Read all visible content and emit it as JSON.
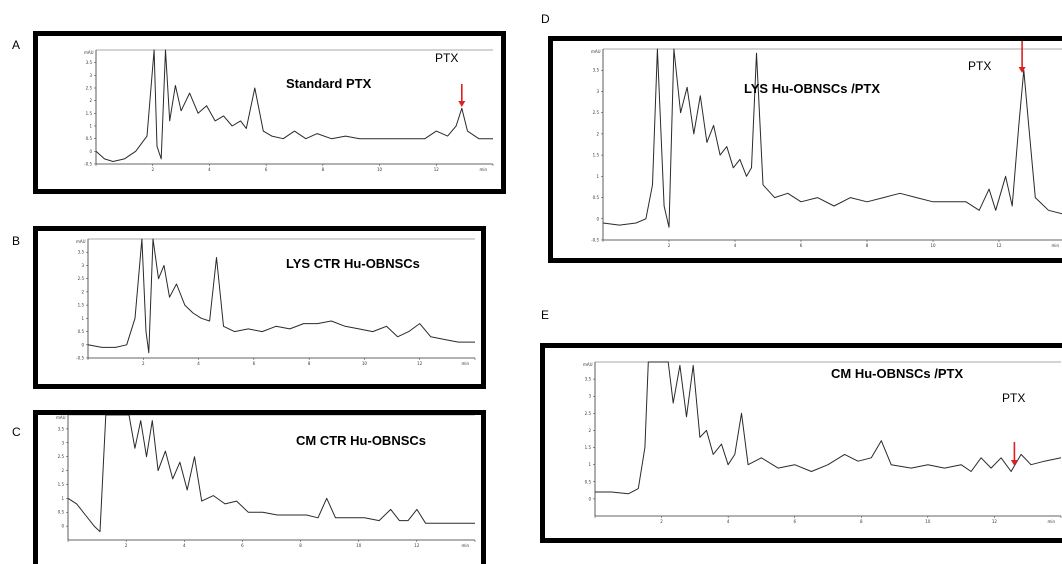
{
  "panels": {
    "A": {
      "letter": "A",
      "title": "Standard  PTX",
      "ptx": "PTX"
    },
    "B": {
      "letter": "B",
      "title": "LYS CTR Hu-OBNSCs"
    },
    "C": {
      "letter": "C",
      "title": "CM CTR Hu-OBNSCs"
    },
    "D": {
      "letter": "D",
      "title": "LYS Hu-OBNSCs  /PTX",
      "ptx": "PTX"
    },
    "E": {
      "letter": "E",
      "title": "CM Hu-OBNSCs  /PTX",
      "ptx": "PTX"
    }
  },
  "colors": {
    "trace": "#2a2a2a",
    "arrow": "#e02020",
    "frame": "#000000"
  },
  "chart_data": [
    {
      "type": "line",
      "panel": "A",
      "title": "Standard  PTX",
      "ylabel": "mAU",
      "xlabel": "min",
      "xlim": [
        0,
        14
      ],
      "ylim": [
        -0.5,
        4
      ],
      "yticks": [
        "-0.5",
        "0",
        "0.5",
        "1",
        "1.5",
        "2",
        "2.5",
        "3",
        "3.5"
      ],
      "annotation": {
        "label": "PTX",
        "x": 12.9
      },
      "points": [
        [
          0,
          0
        ],
        [
          0.3,
          -0.3
        ],
        [
          0.6,
          -0.4
        ],
        [
          1.0,
          -0.3
        ],
        [
          1.4,
          0
        ],
        [
          1.8,
          0.6
        ],
        [
          2.05,
          4.0
        ],
        [
          2.15,
          0.2
        ],
        [
          2.3,
          -0.3
        ],
        [
          2.45,
          4.0
        ],
        [
          2.6,
          1.2
        ],
        [
          2.8,
          2.6
        ],
        [
          3.0,
          1.6
        ],
        [
          3.3,
          2.3
        ],
        [
          3.6,
          1.5
        ],
        [
          3.9,
          1.8
        ],
        [
          4.2,
          1.2
        ],
        [
          4.5,
          1.4
        ],
        [
          4.8,
          1.0
        ],
        [
          5.1,
          1.2
        ],
        [
          5.3,
          0.9
        ],
        [
          5.6,
          2.5
        ],
        [
          5.9,
          0.8
        ],
        [
          6.2,
          0.6
        ],
        [
          6.6,
          0.5
        ],
        [
          7.0,
          0.8
        ],
        [
          7.4,
          0.5
        ],
        [
          7.8,
          0.7
        ],
        [
          8.3,
          0.5
        ],
        [
          8.8,
          0.6
        ],
        [
          9.3,
          0.5
        ],
        [
          9.8,
          0.5
        ],
        [
          10.4,
          0.5
        ],
        [
          11.0,
          0.5
        ],
        [
          11.6,
          0.5
        ],
        [
          12.0,
          0.8
        ],
        [
          12.4,
          0.6
        ],
        [
          12.7,
          1.0
        ],
        [
          12.9,
          1.7
        ],
        [
          13.1,
          0.8
        ],
        [
          13.5,
          0.5
        ],
        [
          14,
          0.5
        ]
      ]
    },
    {
      "type": "line",
      "panel": "B",
      "title": "LYS CTR Hu-OBNSCs",
      "ylabel": "mAU",
      "xlabel": "min",
      "xlim": [
        0,
        14
      ],
      "ylim": [
        -0.5,
        4
      ],
      "yticks": [
        "-0.5",
        "0",
        "0.5",
        "1",
        "1.5",
        "2",
        "2.5",
        "3",
        "3.5"
      ],
      "points": [
        [
          0,
          0
        ],
        [
          0.5,
          -0.1
        ],
        [
          1.0,
          -0.1
        ],
        [
          1.4,
          0
        ],
        [
          1.7,
          1.0
        ],
        [
          1.95,
          4.0
        ],
        [
          2.1,
          0.5
        ],
        [
          2.2,
          -0.3
        ],
        [
          2.35,
          4.0
        ],
        [
          2.55,
          2.5
        ],
        [
          2.75,
          3.0
        ],
        [
          2.95,
          1.8
        ],
        [
          3.2,
          2.3
        ],
        [
          3.5,
          1.5
        ],
        [
          3.8,
          1.2
        ],
        [
          4.1,
          1.0
        ],
        [
          4.4,
          0.9
        ],
        [
          4.65,
          3.3
        ],
        [
          4.9,
          0.7
        ],
        [
          5.3,
          0.5
        ],
        [
          5.8,
          0.6
        ],
        [
          6.3,
          0.5
        ],
        [
          6.8,
          0.7
        ],
        [
          7.3,
          0.6
        ],
        [
          7.8,
          0.8
        ],
        [
          8.3,
          0.8
        ],
        [
          8.8,
          0.9
        ],
        [
          9.3,
          0.7
        ],
        [
          9.8,
          0.6
        ],
        [
          10.3,
          0.5
        ],
        [
          10.8,
          0.7
        ],
        [
          11.2,
          0.3
        ],
        [
          11.6,
          0.5
        ],
        [
          12.0,
          0.8
        ],
        [
          12.4,
          0.3
        ],
        [
          12.9,
          0.2
        ],
        [
          13.4,
          0.1
        ],
        [
          14,
          0.1
        ]
      ]
    },
    {
      "type": "line",
      "panel": "C",
      "title": "CM CTR Hu-OBNSCs",
      "ylabel": "mAU",
      "xlabel": "min",
      "xlim": [
        0,
        14
      ],
      "ylim": [
        -0.5,
        4
      ],
      "yticks": [
        "0",
        "0.5",
        "1",
        "1.5",
        "2",
        "2.5",
        "3",
        "3.5"
      ],
      "points": [
        [
          0,
          1.0
        ],
        [
          0.3,
          0.8
        ],
        [
          0.6,
          0.4
        ],
        [
          0.9,
          0
        ],
        [
          1.1,
          -0.2
        ],
        [
          1.3,
          4.0
        ],
        [
          2.1,
          4.0
        ],
        [
          2.3,
          2.8
        ],
        [
          2.5,
          3.8
        ],
        [
          2.7,
          2.5
        ],
        [
          2.9,
          3.8
        ],
        [
          3.1,
          2.0
        ],
        [
          3.35,
          2.7
        ],
        [
          3.6,
          1.7
        ],
        [
          3.85,
          2.3
        ],
        [
          4.1,
          1.3
        ],
        [
          4.35,
          2.5
        ],
        [
          4.6,
          0.9
        ],
        [
          5.0,
          1.1
        ],
        [
          5.4,
          0.8
        ],
        [
          5.8,
          0.9
        ],
        [
          6.2,
          0.5
        ],
        [
          6.7,
          0.5
        ],
        [
          7.2,
          0.4
        ],
        [
          7.7,
          0.4
        ],
        [
          8.2,
          0.4
        ],
        [
          8.6,
          0.3
        ],
        [
          8.9,
          1.0
        ],
        [
          9.2,
          0.3
        ],
        [
          9.7,
          0.3
        ],
        [
          10.2,
          0.3
        ],
        [
          10.7,
          0.2
        ],
        [
          11.1,
          0.6
        ],
        [
          11.4,
          0.2
        ],
        [
          11.7,
          0.2
        ],
        [
          12.0,
          0.6
        ],
        [
          12.3,
          0.1
        ],
        [
          12.8,
          0.1
        ],
        [
          13.4,
          0.1
        ],
        [
          14,
          0.1
        ]
      ]
    },
    {
      "type": "line",
      "panel": "D",
      "title": "LYS Hu-OBNSCs  /PTX",
      "ylabel": "mAU",
      "xlabel": "min",
      "xlim": [
        0,
        14
      ],
      "ylim": [
        -0.5,
        4
      ],
      "yticks": [
        "-0.5",
        "0",
        "0.5",
        "1",
        "1.5",
        "2",
        "2.5",
        "3",
        "3.5"
      ],
      "annotation": {
        "label": "PTX",
        "x": 12.7
      },
      "points": [
        [
          0,
          -0.1
        ],
        [
          0.5,
          -0.15
        ],
        [
          1.0,
          -0.1
        ],
        [
          1.3,
          0
        ],
        [
          1.5,
          0.8
        ],
        [
          1.65,
          4.0
        ],
        [
          1.85,
          0.3
        ],
        [
          2.0,
          -0.2
        ],
        [
          2.15,
          4.0
        ],
        [
          2.35,
          2.5
        ],
        [
          2.55,
          3.1
        ],
        [
          2.75,
          2.0
        ],
        [
          2.95,
          2.9
        ],
        [
          3.15,
          1.8
        ],
        [
          3.35,
          2.2
        ],
        [
          3.55,
          1.5
        ],
        [
          3.75,
          1.7
        ],
        [
          3.95,
          1.2
        ],
        [
          4.15,
          1.4
        ],
        [
          4.35,
          1.0
        ],
        [
          4.5,
          1.2
        ],
        [
          4.65,
          3.9
        ],
        [
          4.85,
          0.8
        ],
        [
          5.2,
          0.5
        ],
        [
          5.6,
          0.6
        ],
        [
          6.0,
          0.4
        ],
        [
          6.5,
          0.5
        ],
        [
          7.0,
          0.3
        ],
        [
          7.5,
          0.5
        ],
        [
          8.0,
          0.4
        ],
        [
          8.5,
          0.5
        ],
        [
          9.0,
          0.6
        ],
        [
          9.5,
          0.5
        ],
        [
          10.0,
          0.4
        ],
        [
          10.5,
          0.4
        ],
        [
          11.0,
          0.4
        ],
        [
          11.4,
          0.2
        ],
        [
          11.7,
          0.7
        ],
        [
          11.9,
          0.2
        ],
        [
          12.2,
          1.0
        ],
        [
          12.4,
          0.3
        ],
        [
          12.6,
          2.2
        ],
        [
          12.75,
          3.5
        ],
        [
          12.9,
          2.2
        ],
        [
          13.1,
          0.5
        ],
        [
          13.5,
          0.2
        ],
        [
          14,
          0.1
        ]
      ]
    },
    {
      "type": "line",
      "panel": "E",
      "title": "CM Hu-OBNSCs  /PTX",
      "ylabel": "mAU",
      "xlabel": "min",
      "xlim": [
        0,
        14
      ],
      "ylim": [
        -0.5,
        4
      ],
      "yticks": [
        "0",
        "0.5",
        "1",
        "1.5",
        "2",
        "2.5",
        "3",
        "3.5"
      ],
      "annotation": {
        "label": "PTX",
        "x": 12.6
      },
      "points": [
        [
          0,
          0.2
        ],
        [
          0.5,
          0.2
        ],
        [
          1.0,
          0.15
        ],
        [
          1.3,
          0.3
        ],
        [
          1.5,
          1.5
        ],
        [
          1.6,
          4.0
        ],
        [
          2.2,
          4.0
        ],
        [
          2.35,
          2.8
        ],
        [
          2.55,
          3.9
        ],
        [
          2.75,
          2.4
        ],
        [
          2.95,
          3.9
        ],
        [
          3.15,
          1.8
        ],
        [
          3.35,
          2.0
        ],
        [
          3.55,
          1.3
        ],
        [
          3.8,
          1.6
        ],
        [
          4.0,
          1.0
        ],
        [
          4.2,
          1.3
        ],
        [
          4.4,
          2.5
        ],
        [
          4.6,
          1.0
        ],
        [
          5.0,
          1.2
        ],
        [
          5.5,
          0.9
        ],
        [
          6.0,
          1.0
        ],
        [
          6.5,
          0.8
        ],
        [
          7.0,
          1.0
        ],
        [
          7.5,
          1.3
        ],
        [
          7.9,
          1.1
        ],
        [
          8.3,
          1.2
        ],
        [
          8.6,
          1.7
        ],
        [
          8.9,
          1.0
        ],
        [
          9.5,
          0.9
        ],
        [
          10.0,
          1.0
        ],
        [
          10.5,
          0.9
        ],
        [
          11.0,
          1.0
        ],
        [
          11.3,
          0.8
        ],
        [
          11.6,
          1.2
        ],
        [
          11.9,
          0.9
        ],
        [
          12.2,
          1.2
        ],
        [
          12.5,
          0.8
        ],
        [
          12.8,
          1.3
        ],
        [
          13.1,
          1.0
        ],
        [
          13.5,
          1.1
        ],
        [
          14,
          1.2
        ]
      ]
    }
  ]
}
